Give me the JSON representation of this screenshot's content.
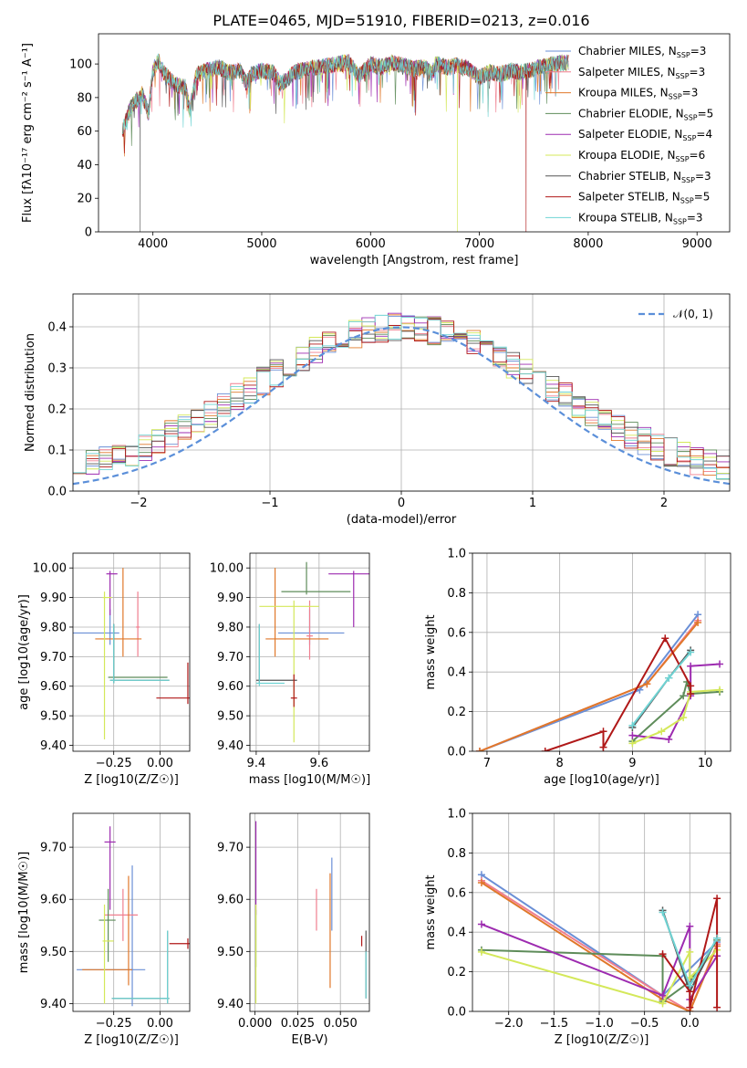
{
  "figure_title": "PLATE=0465, MJD=51910, FIBERID=0213, z=0.016",
  "colors": {
    "Chabrier MILES": "#6a8fd6",
    "Salpeter MILES": "#f07f8f",
    "Kroupa MILES": "#e0782a",
    "Chabrier ELODIE": "#5e8c5a",
    "Salpeter ELODIE": "#9d2bb0",
    "Kroupa ELODIE": "#d4e85a",
    "Chabrier STELIB": "#555555",
    "Salpeter STELIB": "#b01818",
    "Kroupa STELIB": "#6fd4d4"
  },
  "chart_data": [
    {
      "id": "spectrum",
      "type": "line",
      "title": "PLATE=0465, MJD=51910, FIBERID=0213, z=0.016",
      "xlabel": "wavelength [Angstrom, rest frame]",
      "ylabel": "Flux [fλ10⁻¹⁷ erg cm⁻² s⁻¹ A⁻¹]",
      "xlim": [
        3500,
        9300
      ],
      "ylim": [
        0,
        118
      ],
      "xticks": [
        4000,
        5000,
        6000,
        7000,
        8000,
        9000
      ],
      "yticks": [
        0,
        20,
        40,
        60,
        80,
        100
      ],
      "legend_position": "upper-right",
      "legend": [
        "Chabrier MILES, N_SSP=3",
        "Salpeter MILES, N_SSP=3",
        "Kroupa MILES, N_SSP=3",
        "Chabrier ELODIE, N_SSP=5",
        "Salpeter ELODIE, N_SSP=4",
        "Kroupa ELODIE, N_SSP=6",
        "Chabrier STELIB, N_SSP=3",
        "Salpeter STELIB, N_SSP=5",
        "Kroupa STELIB, N_SSP=3"
      ],
      "series_keys": [
        "Chabrier MILES",
        "Salpeter MILES",
        "Kroupa MILES",
        "Chabrier ELODIE",
        "Salpeter ELODIE",
        "Kroupa ELODIE",
        "Chabrier STELIB",
        "Salpeter STELIB",
        "Kroupa STELIB"
      ],
      "x": [
        3720,
        3800,
        3900,
        3960,
        4000,
        4050,
        4100,
        4200,
        4300,
        4340,
        4400,
        4500,
        4600,
        4700,
        4800,
        4861,
        4900,
        5000,
        5100,
        5175,
        5250,
        5300,
        5400,
        5500,
        5600,
        5700,
        5800,
        5890,
        6000,
        6100,
        6200,
        6300,
        6400,
        6500,
        6563,
        6600,
        6700,
        6800,
        6900,
        7000,
        7100,
        7200,
        7300,
        7400,
        7500,
        7600,
        7700,
        7800
      ],
      "y": [
        60,
        75,
        82,
        70,
        96,
        102,
        95,
        88,
        86,
        72,
        94,
        96,
        98,
        95,
        96,
        88,
        94,
        96,
        95,
        88,
        92,
        95,
        97,
        98,
        99,
        100,
        101,
        93,
        100,
        98,
        101,
        99,
        97,
        98,
        94,
        100,
        98,
        99,
        97,
        92,
        95,
        94,
        96,
        95,
        97,
        99,
        100,
        101
      ],
      "dropouts": [
        {
          "series": "Salpeter STELIB",
          "x": 7430
        },
        {
          "series": "Kroupa ELODIE",
          "x": 6800
        },
        {
          "series": "Chabrier STELIB",
          "x": 3880
        }
      ]
    },
    {
      "id": "residuals",
      "type": "line",
      "xlabel": "(data-model)/error",
      "ylabel": "Normed distribution",
      "xlim": [
        -2.5,
        2.5
      ],
      "ylim": [
        0,
        0.48
      ],
      "xticks": [
        -2,
        -1,
        0,
        1,
        2
      ],
      "yticks": [
        0.0,
        0.1,
        0.2,
        0.3,
        0.4
      ],
      "legend_position": "upper-right",
      "reference_curve": "N(0,1)",
      "bin_width": 0.1,
      "series_keys": [
        "Chabrier MILES",
        "Salpeter MILES",
        "Kroupa MILES",
        "Chabrier ELODIE",
        "Salpeter ELODIE",
        "Kroupa ELODIE",
        "Chabrier STELIB",
        "Salpeter STELIB",
        "Kroupa STELIB"
      ]
    },
    {
      "id": "age_vs_Z",
      "type": "scatter",
      "xlabel": "Z [log10(Z/Z☉)]",
      "ylabel": "age  [log10(age/yr)]",
      "xlim": [
        -0.47,
        0.16
      ],
      "ylim": [
        9.38,
        10.05
      ],
      "xticks": [
        -0.25,
        0.0
      ],
      "yticks": [
        9.4,
        9.5,
        9.6,
        9.7,
        9.8,
        9.9,
        10.0
      ],
      "points": [
        {
          "series": "Chabrier MILES",
          "x": -0.27,
          "y": 9.78,
          "xerr": [
            0.2,
            0.05
          ],
          "yerr": [
            0.04,
            0.08
          ]
        },
        {
          "series": "Salpeter MILES",
          "x": -0.12,
          "y": 9.8,
          "xerr": [
            0.01,
            0.01
          ],
          "yerr": [
            0.1,
            0.12
          ]
        },
        {
          "series": "Kroupa MILES",
          "x": -0.2,
          "y": 9.76,
          "xerr": [
            0.15,
            0.1
          ],
          "yerr": [
            0.06,
            0.24
          ]
        },
        {
          "series": "Chabrier ELODIE",
          "x": -0.25,
          "y": 9.63,
          "xerr": [
            0.03,
            0.29
          ],
          "yerr": [
            0.01,
            0.18
          ]
        },
        {
          "series": "Salpeter ELODIE",
          "x": -0.27,
          "y": 9.98,
          "xerr": [
            0.02,
            0.04
          ],
          "yerr": [
            0.14,
            0.01
          ]
        },
        {
          "series": "Kroupa ELODIE",
          "x": -0.3,
          "y": 9.9,
          "xerr": [
            0.01,
            0.04
          ],
          "yerr": [
            0.48,
            0.02
          ]
        },
        {
          "series": "Chabrier STELIB",
          "x": -0.25,
          "y": 9.62,
          "xerr": [
            0.02,
            0.3
          ],
          "yerr": [
            0.01,
            0.19
          ]
        },
        {
          "series": "Salpeter STELIB",
          "x": 0.15,
          "y": 9.56,
          "xerr": [
            0.17,
            0.01
          ],
          "yerr": [
            0.02,
            0.12
          ]
        },
        {
          "series": "Kroupa STELIB",
          "x": -0.25,
          "y": 9.62,
          "xerr": [
            0.02,
            0.3
          ],
          "yerr": [
            0.01,
            0.19
          ]
        }
      ]
    },
    {
      "id": "age_vs_mass",
      "type": "scatter",
      "xlabel": "mass [log10(M/M☉)]",
      "ylabel": "",
      "xlim": [
        9.38,
        9.76
      ],
      "ylim": [
        9.38,
        10.05
      ],
      "xticks": [
        9.4,
        9.6
      ],
      "yticks": [
        9.4,
        9.5,
        9.6,
        9.7,
        9.8,
        9.9,
        10.0
      ],
      "points": [
        {
          "series": "Chabrier MILES",
          "x": 9.57,
          "y": 9.78,
          "xerr": [
            0.1,
            0.11
          ],
          "yerr": [
            0.04,
            0.08
          ]
        },
        {
          "series": "Salpeter MILES",
          "x": 9.57,
          "y": 9.77,
          "xerr": [
            0.01,
            0.01
          ],
          "yerr": [
            0.08,
            0.12
          ]
        },
        {
          "series": "Kroupa MILES",
          "x": 9.46,
          "y": 9.76,
          "xerr": [
            0.03,
            0.17
          ],
          "yerr": [
            0.06,
            0.24
          ]
        },
        {
          "series": "Chabrier ELODIE",
          "x": 9.56,
          "y": 9.92,
          "xerr": [
            0.08,
            0.14
          ],
          "yerr": [
            0.01,
            0.1
          ]
        },
        {
          "series": "Salpeter ELODIE",
          "x": 9.71,
          "y": 9.98,
          "xerr": [
            0.08,
            0.06
          ],
          "yerr": [
            0.18,
            0.01
          ]
        },
        {
          "series": "Kroupa ELODIE",
          "x": 9.52,
          "y": 9.87,
          "xerr": [
            0.11,
            0.08
          ],
          "yerr": [
            0.46,
            0.02
          ]
        },
        {
          "series": "Chabrier STELIB",
          "x": 9.41,
          "y": 9.62,
          "xerr": [
            0.01,
            0.12
          ],
          "yerr": [
            0.01,
            0.19
          ]
        },
        {
          "series": "Salpeter STELIB",
          "x": 9.52,
          "y": 9.56,
          "xerr": [
            0.01,
            0.01
          ],
          "yerr": [
            0.03,
            0.08
          ]
        },
        {
          "series": "Kroupa STELIB",
          "x": 9.41,
          "y": 9.61,
          "xerr": [
            0.01,
            0.08
          ],
          "yerr": [
            0.01,
            0.2
          ]
        }
      ]
    },
    {
      "id": "weight_vs_age",
      "type": "line",
      "xlabel": "age  [log10(age/yr)]",
      "ylabel": "mass weight",
      "xlim": [
        6.8,
        10.35
      ],
      "ylim": [
        0,
        1.0
      ],
      "xticks": [
        7,
        8,
        9,
        10
      ],
      "yticks": [
        0.0,
        0.2,
        0.4,
        0.6,
        0.8,
        1.0
      ],
      "series": [
        {
          "key": "Chabrier MILES",
          "x": [
            6.9,
            9.1,
            9.9
          ],
          "y": [
            0.0,
            0.31,
            0.69
          ]
        },
        {
          "key": "Salpeter MILES",
          "x": [
            6.9,
            9.2,
            9.9
          ],
          "y": [
            0.0,
            0.34,
            0.66
          ]
        },
        {
          "key": "Kroupa MILES",
          "x": [
            6.9,
            9.2,
            9.9
          ],
          "y": [
            0.0,
            0.34,
            0.65
          ]
        },
        {
          "key": "Chabrier ELODIE",
          "x": [
            9.0,
            9.7,
            9.75,
            9.8,
            10.2
          ],
          "y": [
            0.05,
            0.28,
            0.35,
            0.29,
            0.3
          ]
        },
        {
          "key": "Salpeter ELODIE",
          "x": [
            9.0,
            9.5,
            9.8,
            9.8,
            10.2
          ],
          "y": [
            0.08,
            0.06,
            0.28,
            0.43,
            0.44
          ]
        },
        {
          "key": "Kroupa ELODIE",
          "x": [
            9.0,
            9.4,
            9.7,
            9.8,
            10.2
          ],
          "y": [
            0.04,
            0.1,
            0.17,
            0.3,
            0.31
          ]
        },
        {
          "key": "Chabrier STELIB",
          "x": [
            9.0,
            9.5,
            9.8
          ],
          "y": [
            0.12,
            0.37,
            0.51
          ]
        },
        {
          "key": "Salpeter STELIB",
          "x": [
            7.8,
            8.6,
            8.6,
            9.45,
            9.8,
            9.8
          ],
          "y": [
            0.0,
            0.1,
            0.02,
            0.57,
            0.33,
            0.29
          ]
        },
        {
          "key": "Kroupa STELIB",
          "x": [
            9.0,
            9.5,
            9.8
          ],
          "y": [
            0.13,
            0.37,
            0.5
          ]
        }
      ]
    },
    {
      "id": "mass_vs_Z",
      "type": "scatter",
      "xlabel": "Z [log10(Z/Z☉)]",
      "ylabel": "mass [log10(M/M☉)]",
      "xlim": [
        -0.47,
        0.16
      ],
      "ylim": [
        9.385,
        9.765
      ],
      "xticks": [
        -0.25,
        0.0
      ],
      "yticks": [
        9.4,
        9.5,
        9.6,
        9.7
      ],
      "points": [
        {
          "series": "Chabrier MILES",
          "x": -0.15,
          "y": 9.465,
          "xerr": [
            0.3,
            0.07
          ],
          "yerr": [
            0.07,
            0.2
          ]
        },
        {
          "series": "Salpeter MILES",
          "x": -0.2,
          "y": 9.57,
          "xerr": [
            0.1,
            0.08
          ],
          "yerr": [
            0.05,
            0.05
          ]
        },
        {
          "series": "Kroupa MILES",
          "x": -0.17,
          "y": 9.465,
          "xerr": [
            0.25,
            0.02
          ],
          "yerr": [
            0.03,
            0.18
          ]
        },
        {
          "series": "Chabrier ELODIE",
          "x": -0.28,
          "y": 9.56,
          "xerr": [
            0.05,
            0.04
          ],
          "yerr": [
            0.08,
            0.06
          ]
        },
        {
          "series": "Salpeter ELODIE",
          "x": -0.27,
          "y": 9.71,
          "xerr": [
            0.03,
            0.03
          ],
          "yerr": [
            0.13,
            0.03
          ]
        },
        {
          "series": "Kroupa ELODIE",
          "x": -0.3,
          "y": 9.52,
          "xerr": [
            0.01,
            0.05
          ],
          "yerr": [
            0.12,
            0.07
          ]
        },
        {
          "series": "Chabrier STELIB",
          "x": 0.04,
          "y": 9.41,
          "xerr": [
            0.3,
            0.01
          ],
          "yerr": [
            0.01,
            0.13
          ]
        },
        {
          "series": "Salpeter STELIB",
          "x": 0.15,
          "y": 9.515,
          "xerr": [
            0.1,
            0.01
          ],
          "yerr": [
            0.01,
            0.01
          ]
        },
        {
          "series": "Kroupa STELIB",
          "x": 0.04,
          "y": 9.41,
          "xerr": [
            0.3,
            0.01
          ],
          "yerr": [
            0.01,
            0.13
          ]
        }
      ]
    },
    {
      "id": "mass_vs_EBV",
      "type": "scatter",
      "xlabel": "E(B-V)",
      "ylabel": "",
      "xlim": [
        -0.003,
        0.067
      ],
      "ylim": [
        9.385,
        9.765
      ],
      "xticks": [
        0.0,
        0.025,
        0.05
      ],
      "xticklabels": [
        "0.000",
        "0.025",
        "0.050"
      ],
      "yticks": [
        9.4,
        9.5,
        9.6,
        9.7
      ],
      "points": [
        {
          "series": "Chabrier MILES",
          "x": 0.045,
          "y": 9.58,
          "xerr": [
            0,
            0
          ],
          "yerr": [
            0.04,
            0.1
          ]
        },
        {
          "series": "Salpeter MILES",
          "x": 0.036,
          "y": 9.57,
          "xerr": [
            0,
            0
          ],
          "yerr": [
            0.03,
            0.05
          ]
        },
        {
          "series": "Kroupa MILES",
          "x": 0.044,
          "y": 9.53,
          "xerr": [
            0,
            0
          ],
          "yerr": [
            0.1,
            0.12
          ]
        },
        {
          "series": "Chabrier ELODIE",
          "x": 0.0005,
          "y": 9.52,
          "xerr": [
            0,
            0
          ],
          "yerr": [
            0.05,
            0.06
          ]
        },
        {
          "series": "Salpeter ELODIE",
          "x": 0.0005,
          "y": 9.7,
          "xerr": [
            0,
            0
          ],
          "yerr": [
            0.13,
            0.05
          ]
        },
        {
          "series": "Kroupa ELODIE",
          "x": 0.0005,
          "y": 9.5,
          "xerr": [
            0,
            0
          ],
          "yerr": [
            0.1,
            0.09
          ]
        },
        {
          "series": "Chabrier STELIB",
          "x": 0.065,
          "y": 9.5,
          "xerr": [
            0,
            0
          ],
          "yerr": [
            0.09,
            0.04
          ]
        },
        {
          "series": "Salpeter STELIB",
          "x": 0.0625,
          "y": 9.52,
          "xerr": [
            0,
            0
          ],
          "yerr": [
            0.01,
            0.01
          ]
        },
        {
          "series": "Kroupa STELIB",
          "x": 0.065,
          "y": 9.45,
          "xerr": [
            0,
            0
          ],
          "yerr": [
            0.04,
            0.05
          ]
        }
      ]
    },
    {
      "id": "weight_vs_Z",
      "type": "line",
      "xlabel": "Z [log10(Z/Z☉)]",
      "ylabel": "mass weight",
      "xlim": [
        -2.4,
        0.45
      ],
      "ylim": [
        0,
        1.0
      ],
      "xticks": [
        -2.0,
        -1.5,
        -1.0,
        -0.5,
        0.0
      ],
      "yticks": [
        0.0,
        0.2,
        0.4,
        0.6,
        0.8,
        1.0
      ],
      "series": [
        {
          "key": "Chabrier MILES",
          "x": [
            -2.3,
            -0.3,
            0.3
          ],
          "y": [
            0.69,
            0.08,
            0.35
          ]
        },
        {
          "key": "Salpeter MILES",
          "x": [
            -2.3,
            -0.3,
            0.0,
            0.3
          ],
          "y": [
            0.66,
            0.08,
            0.0,
            0.34
          ]
        },
        {
          "key": "Kroupa MILES",
          "x": [
            -2.3,
            -0.3,
            0.0,
            0.3
          ],
          "y": [
            0.65,
            0.06,
            0.0,
            0.33
          ]
        },
        {
          "key": "Chabrier ELODIE",
          "x": [
            -2.3,
            -0.3,
            -0.3,
            0.0,
            0.3
          ],
          "y": [
            0.31,
            0.28,
            0.05,
            0.15,
            0.36
          ]
        },
        {
          "key": "Salpeter ELODIE",
          "x": [
            -2.3,
            -0.3,
            0.0,
            0.0,
            0.3
          ],
          "y": [
            0.44,
            0.08,
            0.43,
            0.06,
            0.28
          ]
        },
        {
          "key": "Kroupa ELODIE",
          "x": [
            -2.3,
            -0.3,
            0.0,
            0.0,
            0.3
          ],
          "y": [
            0.3,
            0.04,
            0.3,
            0.17,
            0.31
          ]
        },
        {
          "key": "Chabrier STELIB",
          "x": [
            -0.3,
            0.0,
            0.3
          ],
          "y": [
            0.51,
            0.1,
            0.37
          ]
        },
        {
          "key": "Salpeter STELIB",
          "x": [
            -0.3,
            0.0,
            0.0,
            0.3,
            0.3
          ],
          "y": [
            0.29,
            0.1,
            0.02,
            0.57,
            0.02
          ]
        },
        {
          "key": "Kroupa STELIB",
          "x": [
            -0.3,
            0.0,
            0.3
          ],
          "y": [
            0.5,
            0.13,
            0.37
          ]
        }
      ]
    }
  ]
}
